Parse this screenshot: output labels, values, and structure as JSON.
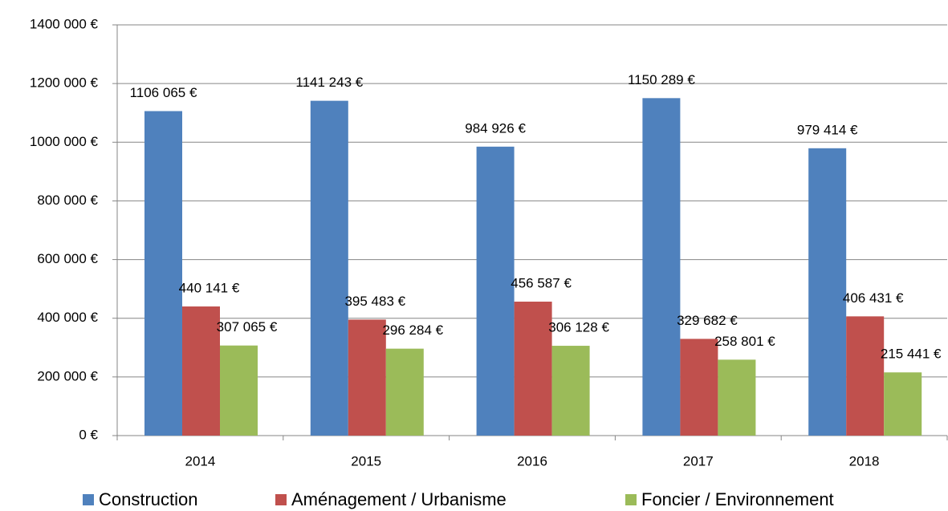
{
  "chart_data": {
    "type": "bar",
    "categories": [
      "2014",
      "2015",
      "2016",
      "2017",
      "2018"
    ],
    "series": [
      {
        "name": "Construction",
        "color": "#4f81bd",
        "values": [
          1106065,
          1141243,
          984926,
          1150289,
          979414
        ],
        "value_labels": [
          "1106 065 €",
          "1141 243 €",
          "984 926 €",
          "1150 289 €",
          "979 414 €"
        ]
      },
      {
        "name": "Aménagement / Urbanisme",
        "color": "#c0504d",
        "values": [
          440141,
          395483,
          456587,
          329682,
          406431
        ],
        "value_labels": [
          "440 141 €",
          "395 483 €",
          "456 587 €",
          "329 682 €",
          "406 431 €"
        ]
      },
      {
        "name": "Foncier / Environnement",
        "color": "#9bbb59",
        "values": [
          307065,
          296284,
          306128,
          258801,
          215441
        ],
        "value_labels": [
          "307 065 €",
          "296 284 €",
          "306 128 €",
          "258 801 €",
          "215 441 €"
        ]
      }
    ],
    "ylim": [
      0,
      1400000
    ],
    "yticks": [
      {
        "value": 0,
        "label": "0 €"
      },
      {
        "value": 200000,
        "label": "200 000 €"
      },
      {
        "value": 400000,
        "label": "400 000 €"
      },
      {
        "value": 600000,
        "label": "600 000 €"
      },
      {
        "value": 800000,
        "label": "800 000 €"
      },
      {
        "value": 1000000,
        "label": "1000 000 €"
      },
      {
        "value": 1200000,
        "label": "1200 000 €"
      },
      {
        "value": 1400000,
        "label": "1400 000 €"
      }
    ],
    "grid": true,
    "legend": "bottom"
  }
}
